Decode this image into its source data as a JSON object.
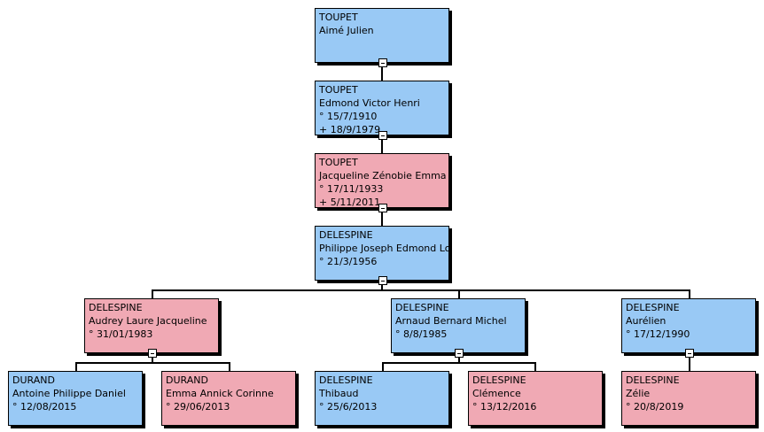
{
  "nodes": [
    {
      "lines": [
        "TOUPET",
        "Aimé Julien"
      ],
      "color": "#99c9f5"
    },
    {
      "lines": [
        "TOUPET",
        "Edmond Victor Henri",
        "° 15/7/1910",
        "+ 18/9/1979"
      ],
      "color": "#99c9f5"
    },
    {
      "lines": [
        "TOUPET",
        "Jacqueline Zénobie Emma",
        "° 17/11/1933",
        "+ 5/11/2011"
      ],
      "color": "#f0a9b4"
    },
    {
      "lines": [
        "DELESPINE",
        "Philippe Joseph Edmond Lo",
        "° 21/3/1956"
      ],
      "color": "#99c9f5"
    },
    {
      "lines": [
        "DELESPINE",
        "Audrey Laure Jacqueline",
        "° 31/01/1983"
      ],
      "color": "#f0a9b4"
    },
    {
      "lines": [
        "DELESPINE",
        "Arnaud Bernard Michel",
        "° 8/8/1985"
      ],
      "color": "#99c9f5"
    },
    {
      "lines": [
        "DELESPINE",
        "Aurélien",
        "° 17/12/1990"
      ],
      "color": "#99c9f5"
    },
    {
      "lines": [
        "DURAND",
        "Antoine Philippe Daniel",
        "° 12/08/2015"
      ],
      "color": "#99c9f5"
    },
    {
      "lines": [
        "DURAND",
        "Emma Annick Corinne",
        "° 29/06/2013"
      ],
      "color": "#f0a9b4"
    },
    {
      "lines": [
        "DELESPINE",
        "Thibaud",
        "° 25/6/2013"
      ],
      "color": "#99c9f5"
    },
    {
      "lines": [
        "DELESPINE",
        "Clémence",
        "° 13/12/2016"
      ],
      "color": "#f0a9b4"
    },
    {
      "lines": [
        "DELESPINE",
        "Zélie",
        "° 20/8/2019"
      ],
      "color": "#f0a9b4"
    }
  ]
}
